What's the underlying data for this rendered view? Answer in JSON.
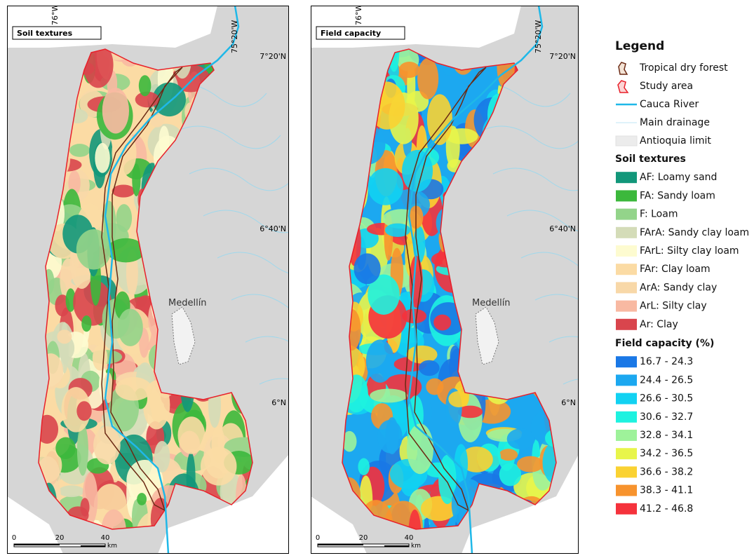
{
  "panels": [
    {
      "title": "Soil textures",
      "lon_labels": [
        "76°W",
        "75°20'W"
      ],
      "lat_labels": [
        "7°20'N",
        "6°40'N",
        "6°N"
      ],
      "city": "Medellín",
      "scale": {
        "ticks": [
          "0",
          "20",
          "40"
        ],
        "unit": "km"
      }
    },
    {
      "title": "Field capacity",
      "lon_labels": [
        "76°W",
        "75°20'W"
      ],
      "lat_labels": [
        "7°20'N",
        "6°40'N",
        "6°N"
      ],
      "city": "Medellín",
      "scale": {
        "ticks": [
          "0",
          "20",
          "40"
        ],
        "unit": "km"
      }
    }
  ],
  "legend": {
    "title": "Legend",
    "items": [
      "Tropical dry forest",
      "Study area",
      "Cauca River",
      "Main drainage",
      "Antioquia limit"
    ],
    "sections": [
      {
        "title": "Soil textures",
        "items": [
          {
            "label": "AF: Loamy sand",
            "color": "#12977a"
          },
          {
            "label": "FA: Sandy loam",
            "color": "#3cb83c"
          },
          {
            "label": "F: Loam",
            "color": "#93d48a"
          },
          {
            "label": "FArA: Sandy clay loam",
            "color": "#d4dcb8"
          },
          {
            "label": "FArL: Silty clay loam",
            "color": "#fdfbd0"
          },
          {
            "label": "FAr: Clay loam",
            "color": "#fbdba4"
          },
          {
            "label": "ArA: Sandy clay",
            "color": "#f8d8a8"
          },
          {
            "label": "ArL: Silty clay",
            "color": "#f8b9a2"
          },
          {
            "label": "Ar: Clay",
            "color": "#d9454d"
          }
        ]
      },
      {
        "title": "Field capacity (%)",
        "items": [
          {
            "label": "16.7  -  24.3",
            "color": "#1a78e6"
          },
          {
            "label": "24.4  -  26.5",
            "color": "#1ca8f0"
          },
          {
            "label": "26.6  -  30.5",
            "color": "#12d2f2"
          },
          {
            "label": "30.6  -  32.7",
            "color": "#1ef2e0"
          },
          {
            "label": "32.8  -  34.1",
            "color": "#9ef29a"
          },
          {
            "label": "34.2  -  36.5",
            "color": "#e8f54a"
          },
          {
            "label": "36.6  -  38.2",
            "color": "#fad232"
          },
          {
            "label": "38.3  -  41.1",
            "color": "#f7932e"
          },
          {
            "label": "41.2  -  46.8",
            "color": "#f5323c"
          }
        ]
      }
    ]
  }
}
